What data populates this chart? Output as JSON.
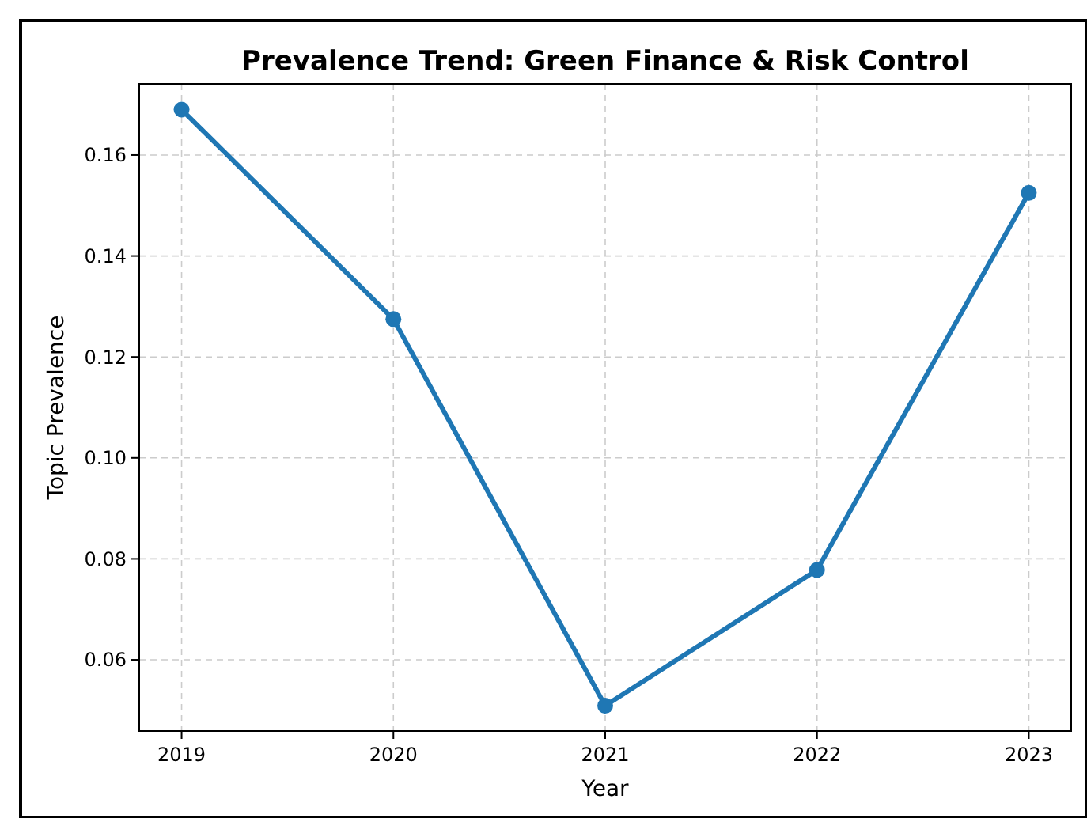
{
  "chart_data": {
    "type": "line",
    "title": "Prevalence Trend: Green Finance & Risk Control",
    "xlabel": "Year",
    "ylabel": "Topic Prevalence",
    "x": [
      2019,
      2020,
      2021,
      2022,
      2023
    ],
    "series": [
      {
        "color": "#1f77b4",
        "values": [
          0.169,
          0.1275,
          0.0509,
          0.0778,
          0.1525
        ]
      }
    ],
    "xlim": [
      2018.8,
      2023.2
    ],
    "xticks": [
      2019,
      2020,
      2021,
      2022,
      2023
    ],
    "ylim": [
      0.0459,
      0.1741
    ],
    "yticks": [
      {
        "value": 0.06,
        "label": "0.06"
      },
      {
        "value": 0.08,
        "label": "0.08"
      },
      {
        "value": 0.1,
        "label": "0.10"
      },
      {
        "value": 0.12,
        "label": "0.12"
      },
      {
        "value": 0.14,
        "label": "0.14"
      },
      {
        "value": 0.16,
        "label": "0.16"
      }
    ],
    "grid": true,
    "marker": "circle",
    "line_style": "solid"
  }
}
